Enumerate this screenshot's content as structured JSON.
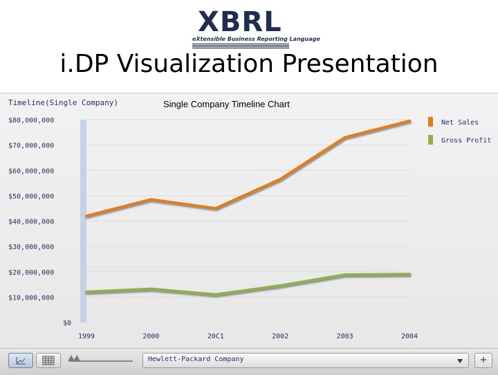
{
  "logo": {
    "word": "XBRL",
    "tagline": "eXtensible Business Reporting Language"
  },
  "slide_title": "i.DP Visualization Presentation",
  "panel": {
    "header": "Timeline(Single Company)"
  },
  "toolbar": {
    "line_view_icon": "line-chart-icon",
    "table_view_icon": "table-icon",
    "company_selected": "Hewlett-Packard Company",
    "add_label": "+"
  },
  "chart_data": {
    "type": "line",
    "title": "Single Company Timeline Chart",
    "x": [
      "1999",
      "2000",
      "2001",
      "2002",
      "2003",
      "2004"
    ],
    "x_tick_labels": [
      "1999",
      "2000",
      "20C1",
      "2002",
      "2003",
      "2004"
    ],
    "y_tick_labels": [
      "$0",
      "$10,000,000",
      "$20,000,000",
      "$30,000,000",
      "$40,000,000",
      "$50,000,000",
      "$60,000,000",
      "$70,000,000",
      "$80,000,000"
    ],
    "ylim": [
      0,
      80000000
    ],
    "y_ticks": [
      0,
      10000000,
      20000000,
      30000000,
      40000000,
      50000000,
      60000000,
      70000000,
      80000000
    ],
    "grid": true,
    "legend_position": "top-right",
    "series": [
      {
        "name": "Net Sales",
        "color": "#e07d1a",
        "values": [
          42000000,
          48500000,
          45000000,
          56500000,
          73000000,
          79500000
        ]
      },
      {
        "name": "Gross Profit",
        "color": "#8fae4e",
        "values": [
          12000000,
          13200000,
          11000000,
          14500000,
          18800000,
          19000000
        ]
      }
    ]
  }
}
